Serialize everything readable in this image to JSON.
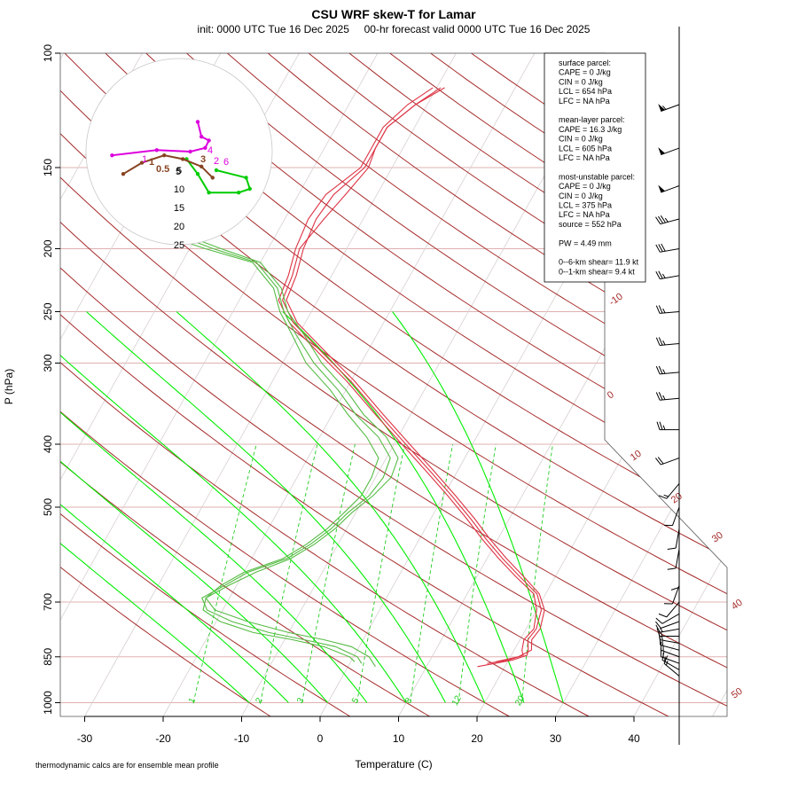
{
  "chart_data": {
    "type": "line",
    "title": "CSU WRF skew-T for Lamar",
    "subtitle": "init: 0000 UTC Tue 16 Dec 2025     00-hr forecast valid 0000 UTC Tue 16 Dec 2025",
    "xlabel": "Temperature (C)",
    "ylabel": "P (hPa)",
    "footnote": "thermodynamic calcs are for ensemble mean profile",
    "xlim": [
      -33,
      45
    ],
    "ylim": [
      1050,
      100
    ],
    "y_scale": "log",
    "x_ticks": [
      "-30",
      "-20",
      "-10",
      "0",
      "10",
      "20",
      "30",
      "40"
    ],
    "x_tick_values": [
      -30,
      -20,
      -10,
      0,
      10,
      20,
      30,
      40
    ],
    "y_ticks": [
      "100",
      "150",
      "200",
      "250",
      "300",
      "400",
      "500",
      "700",
      "850",
      "1000"
    ],
    "y_tick_values": [
      100,
      150,
      200,
      250,
      300,
      400,
      500,
      700,
      850,
      1000
    ],
    "isotherm_labels": [
      {
        "t": -10,
        "text": "-10"
      },
      {
        "t": 0,
        "text": "0"
      },
      {
        "t": 10,
        "text": "10"
      },
      {
        "t": 20,
        "text": "20"
      },
      {
        "t": 30,
        "text": "30"
      },
      {
        "t": 40,
        "text": "40"
      },
      {
        "t": 50,
        "text": "50"
      }
    ],
    "mixing_ratio_labels": [
      "1",
      "2",
      "3",
      "5",
      "8",
      "12",
      "20"
    ],
    "mixing_ratio_values": [
      1,
      2,
      3,
      5,
      8,
      12,
      20
    ],
    "dry_adiabats_theta_K": [
      -10,
      0,
      10,
      20,
      30,
      40,
      50,
      60,
      70,
      80,
      90,
      100,
      110,
      120,
      130,
      140,
      150,
      160,
      170,
      180,
      190,
      200
    ],
    "moist_adiabats_C": [
      -10,
      -5,
      0,
      5,
      10,
      15,
      20,
      25,
      30
    ],
    "series": [
      {
        "kind": "temperature",
        "color": "#dd3344",
        "members": [
          {
            "p": [
              880,
              870,
              860,
              845,
              830,
              800,
              770,
              720,
              680,
              640,
              600,
              560,
              520,
              480,
              440,
              400,
              360,
              320,
              290,
              260,
              240,
              220,
              200,
              180,
              165,
              150,
              140,
              130,
              120,
              113
            ],
            "t": [
              16.5,
              18.5,
              20.5,
              22.0,
              21.8,
              21.0,
              21.3,
              20.6,
              18.9,
              15.5,
              12.0,
              8.5,
              5.0,
              1.0,
              -3.5,
              -8.5,
              -14.0,
              -20.0,
              -25.5,
              -31.5,
              -34.5,
              -35.0,
              -36.0,
              -35.0,
              -34.0,
              -33.0,
              -33.5,
              -33.5,
              -31.5,
              -29.5
            ]
          },
          {
            "p": [
              870,
              860,
              845,
              830,
              800,
              770,
              720,
              680,
              640,
              600,
              560,
              520,
              480,
              440,
              400,
              360,
              320,
              290,
              260,
              240,
              220,
              200,
              180,
              165,
              150,
              140,
              130,
              120,
              113
            ],
            "t": [
              17.5,
              20.0,
              21.5,
              21.0,
              20.5,
              21.0,
              20.0,
              18.5,
              15.0,
              11.5,
              8.0,
              4.5,
              0.5,
              -4.0,
              -9.0,
              -14.5,
              -20.5,
              -26.0,
              -32.0,
              -35.0,
              -35.5,
              -36.5,
              -37.0,
              -36.5,
              -34.0,
              -34.0,
              -34.0,
              -32.5,
              -30.5
            ]
          },
          {
            "p": [
              865,
              850,
              830,
              800,
              770,
              720,
              680,
              640,
              600,
              560,
              520,
              480,
              440,
              400,
              360,
              320,
              290,
              260,
              240,
              220,
              200,
              180,
              165,
              150,
              140,
              130,
              120,
              113
            ],
            "t": [
              18.5,
              21.0,
              22.2,
              21.5,
              21.8,
              21.0,
              19.2,
              16.0,
              12.5,
              9.0,
              5.5,
              1.5,
              -3.0,
              -8.0,
              -13.5,
              -19.5,
              -25.0,
              -31.0,
              -34.0,
              -34.5,
              -35.5,
              -36.0,
              -35.5,
              -33.5,
              -33.5,
              -33.5,
              -31.5,
              -29.0
            ]
          }
        ]
      },
      {
        "kind": "dewpoint",
        "color": "#55bb44",
        "members": [
          {
            "p": [
              880,
              850,
              820,
              800,
              780,
              750,
              720,
              690,
              660,
              630,
              600,
              570,
              540,
              510,
              480,
              450,
              420,
              390,
              360,
              330,
              300,
              270,
              250,
              230,
              210,
              200,
              185,
              170,
              160
            ],
            "t": [
              3.5,
              2.0,
              -1.0,
              -5.0,
              -10.0,
              -16.0,
              -21.0,
              -23.0,
              -22.0,
              -20.0,
              -16.0,
              -14.0,
              -12.5,
              -11.5,
              -10.5,
              -10.5,
              -11.0,
              -14.0,
              -18.0,
              -22.0,
              -27.0,
              -31.0,
              -34.0,
              -36.5,
              -41.0,
              -48.0,
              -58.0,
              -62.0,
              -64.0
            ]
          },
          {
            "p": [
              870,
              850,
              820,
              800,
              780,
              750,
              720,
              690,
              660,
              630,
              600,
              570,
              540,
              510,
              480,
              450,
              420,
              390,
              360,
              330,
              300,
              270,
              250,
              230,
              210,
              200,
              185,
              170,
              160
            ],
            "t": [
              1.5,
              0.5,
              -3.0,
              -7.5,
              -12.5,
              -18.0,
              -22.0,
              -23.5,
              -21.5,
              -19.5,
              -15.5,
              -13.5,
              -12.0,
              -11.0,
              -9.5,
              -9.0,
              -9.5,
              -12.5,
              -17.0,
              -21.0,
              -26.0,
              -30.5,
              -33.5,
              -36.0,
              -40.5,
              -47.0,
              -56.0,
              -60.0,
              -62.0
            ]
          },
          {
            "p": [
              865,
              850,
              820,
              800,
              780,
              750,
              720,
              690,
              660,
              630,
              600,
              570,
              540,
              510,
              480,
              450,
              420,
              390,
              360,
              330,
              300,
              270,
              250,
              230,
              210,
              200,
              185,
              170
            ],
            "t": [
              0.5,
              -0.5,
              -4.5,
              -9.0,
              -14.5,
              -19.5,
              -22.5,
              -23.0,
              -21.0,
              -18.5,
              -15.0,
              -13.0,
              -11.5,
              -10.5,
              -9.0,
              -8.0,
              -8.5,
              -11.5,
              -16.0,
              -20.0,
              -25.0,
              -29.5,
              -33.0,
              -35.5,
              -40.0,
              -46.0,
              -55.0,
              -58.0
            ]
          }
        ]
      },
      {
        "kind": "mixing_ratio_lines",
        "color": "#00dd00"
      }
    ],
    "hodograph": {
      "rings": [
        "5",
        "10",
        "15",
        "20",
        "25"
      ],
      "ring_values": [
        5,
        10,
        15,
        20,
        25
      ],
      "magenta_labels": [
        "4",
        "6",
        "2",
        "1"
      ],
      "brown_labels": [
        "0.5",
        "1",
        "3"
      ],
      "green_labels": [
        "5"
      ],
      "magenta_trace_kt": [
        [
          2.5,
          4.0
        ],
        [
          3.0,
          2.0
        ],
        [
          4.0,
          1.5
        ],
        [
          3.5,
          0.5
        ],
        [
          1.5,
          0.0
        ],
        [
          -3.0,
          0.2
        ],
        [
          -9.0,
          -0.5
        ]
      ],
      "green_trace_kt": [
        [
          1.0,
          -1.0
        ],
        [
          2.5,
          -3.0
        ],
        [
          4.0,
          -5.5
        ],
        [
          8.0,
          -5.5
        ],
        [
          9.5,
          -5.0
        ],
        [
          9.0,
          -3.5
        ],
        [
          5.0,
          -2.5
        ]
      ],
      "brown_trace_kt": [
        [
          4.5,
          -3.5
        ],
        [
          3.0,
          -2.0
        ],
        [
          0.5,
          -1.0
        ],
        [
          -2.0,
          -0.5
        ],
        [
          -5.0,
          -1.5
        ],
        [
          -7.5,
          -3.0
        ]
      ]
    },
    "wind_barbs": {
      "p": [
        120,
        140,
        160,
        180,
        200,
        220,
        250,
        280,
        310,
        340,
        380,
        420,
        460,
        500,
        540,
        580,
        620,
        660,
        700,
        730,
        750,
        770,
        790,
        810,
        830,
        850,
        870,
        890,
        910
      ],
      "speed_kt": [
        55,
        50,
        50,
        35,
        30,
        25,
        25,
        25,
        25,
        25,
        25,
        20,
        15,
        10,
        10,
        10,
        10,
        10,
        10,
        10,
        10,
        15,
        15,
        15,
        15,
        15,
        15,
        15,
        15
      ],
      "direction_deg": [
        250,
        250,
        250,
        255,
        260,
        260,
        265,
        265,
        265,
        265,
        270,
        250,
        220,
        200,
        190,
        190,
        180,
        200,
        220,
        240,
        250,
        260,
        270,
        280,
        285,
        290,
        290,
        300,
        310
      ]
    }
  },
  "stats_box": {
    "lines": [
      "surface parcel:",
      "CAPE = 0 J/kg",
      "CIN = 0 J/kg",
      "LCL = 654 hPa",
      "LFC = NA hPa",
      "",
      "mean-layer parcel:",
      "CAPE = 16.3 J/kg",
      "CIN = 0 J/kg",
      "LCL = 605 hPa",
      "LFC = NA hPa",
      "",
      "most-unstable parcel:",
      "CAPE = 0 J/kg",
      "CIN = 0 J/kg",
      "LCL = 375 hPa",
      "LFC = NA hPa",
      "source = 552 hPa",
      "",
      "PW =  4.49 mm",
      "",
      "0--6-km shear= 11.9 kt",
      "0--1-km shear= 9.4 kt"
    ]
  },
  "colors": {
    "isotherm": "#a52a2a",
    "isobar": "#e0b0b0",
    "mixing": "#22cc22",
    "moist": "#00ee00",
    "dry": "#a52a2a",
    "temperature": "#dd3344",
    "dewpoint": "#55bb44",
    "hodo_magenta": "#dd00dd",
    "hodo_green": "#00cc00",
    "hodo_brown": "#884422"
  }
}
